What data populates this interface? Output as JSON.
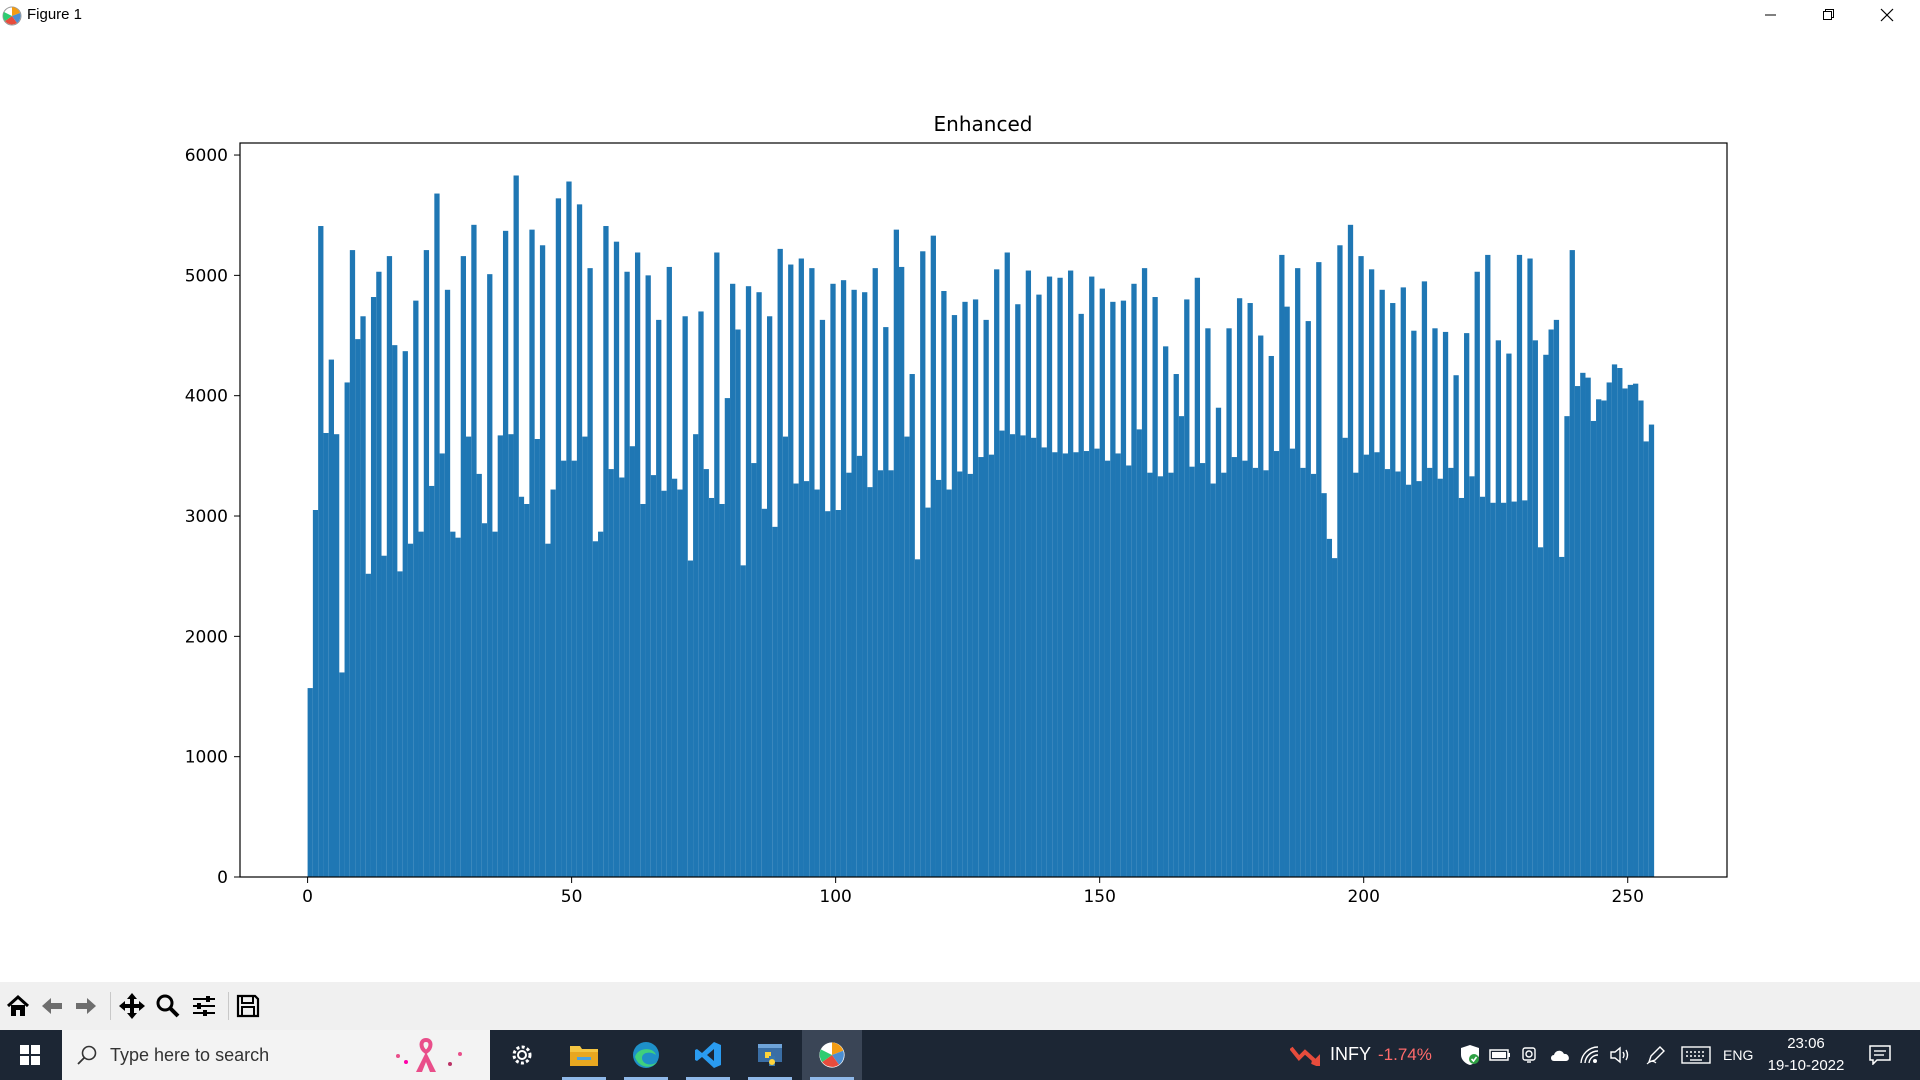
{
  "window": {
    "title": "Figure 1"
  },
  "chart_data": {
    "type": "bar",
    "title": "Enhanced",
    "xlabel": "",
    "ylabel": "",
    "xlim": [
      -12.8,
      268.8
    ],
    "ylim": [
      0,
      6100
    ],
    "xticks": [
      0,
      50,
      100,
      150,
      200,
      250
    ],
    "yticks": [
      0,
      1000,
      2000,
      3000,
      4000,
      5000,
      6000
    ],
    "grid": false,
    "bar_color": "#1f77b4",
    "bin_width": 1,
    "values": [
      1570,
      3050,
      5410,
      3690,
      4300,
      3680,
      1700,
      4110,
      5210,
      4470,
      4660,
      2520,
      4820,
      5030,
      2670,
      5160,
      4420,
      2540,
      4370,
      2770,
      4790,
      2870,
      5210,
      3250,
      5680,
      3520,
      4880,
      2870,
      2820,
      5160,
      3660,
      5420,
      3350,
      2940,
      5010,
      2870,
      3670,
      5370,
      3680,
      5830,
      3160,
      3100,
      5380,
      3640,
      5250,
      2770,
      3220,
      5640,
      3460,
      5780,
      3460,
      5590,
      3660,
      5060,
      2790,
      2870,
      5410,
      3390,
      5280,
      3320,
      5030,
      3580,
      5190,
      3100,
      5000,
      3340,
      4630,
      3210,
      5070,
      3310,
      3220,
      4660,
      2630,
      3680,
      4700,
      3390,
      3150,
      5190,
      3100,
      3980,
      4930,
      4550,
      2590,
      4910,
      3440,
      4860,
      3060,
      4660,
      2910,
      5220,
      3660,
      5090,
      3270,
      5140,
      3290,
      5060,
      3220,
      4630,
      3040,
      4930,
      3050,
      4960,
      3360,
      4880,
      3500,
      4860,
      3240,
      5060,
      3380,
      4570,
      3380,
      5380,
      5070,
      3660,
      4180,
      2640,
      5200,
      3070,
      5330,
      3300,
      4870,
      3220,
      4670,
      3370,
      4780,
      3350,
      4800,
      3490,
      4630,
      3510,
      5050,
      3710,
      5190,
      3680,
      4760,
      3670,
      5040,
      3650,
      4840,
      3570,
      4990,
      3530,
      4980,
      3520,
      5040,
      3530,
      4680,
      3540,
      4990,
      3560,
      4890,
      3460,
      4780,
      3520,
      4790,
      3420,
      4930,
      3720,
      5060,
      3360,
      4820,
      3330,
      4410,
      3360,
      4180,
      3830,
      4800,
      3410,
      4980,
      3440,
      4560,
      3270,
      3900,
      3360,
      4560,
      3490,
      4810,
      3460,
      4770,
      3400,
      4500,
      3380,
      4330,
      3540,
      5170,
      4740,
      3560,
      5060,
      3400,
      4620,
      3350,
      5110,
      3190,
      2810,
      2650,
      5250,
      3650,
      5420,
      3360,
      5160,
      3510,
      5050,
      3530,
      4880,
      3390,
      4770,
      3370,
      4900,
      3260,
      4540,
      3290,
      4950,
      3400,
      4560,
      3310,
      4530,
      3400,
      4170,
      3150,
      4520,
      3330,
      5030,
      3160,
      5170,
      3110,
      4460,
      3110,
      4350,
      3120,
      5170,
      3130,
      5140,
      4460,
      2740,
      4340,
      4550,
      4630,
      2660,
      3830,
      5210,
      4080,
      4190,
      4150,
      3790,
      3970,
      3960,
      4110,
      4260,
      4230,
      4060,
      4090,
      4100,
      3960,
      3620,
      3760
    ]
  },
  "toolbar": {
    "icons": [
      "home-icon",
      "back-icon",
      "forward-icon",
      "pan-icon",
      "zoom-icon",
      "configure-subplots-icon",
      "save-icon"
    ]
  },
  "taskbar": {
    "search_placeholder": "Type here to search",
    "stock_symbol": "INFY",
    "stock_change": "-1.74%",
    "stock_change_color": "#ff6b6b",
    "language": "ENG",
    "time": "23:06",
    "date": "19-10-2022"
  }
}
